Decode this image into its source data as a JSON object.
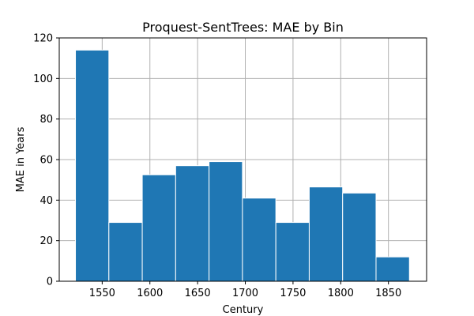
{
  "chart_data": {
    "type": "bar",
    "title": "Proquest-SentTrees: MAE by Bin",
    "xlabel": "Century",
    "ylabel": "MAE in Years",
    "xlim": [
      1505,
      1890
    ],
    "ylim": [
      0,
      120
    ],
    "xticks": [
      1550,
      1600,
      1650,
      1700,
      1750,
      1800,
      1850
    ],
    "yticks": [
      0,
      20,
      40,
      60,
      80,
      100,
      120
    ],
    "grid": true,
    "bar_color": "#1f77b4",
    "bins": [
      {
        "x0": 1522,
        "x1": 1557,
        "value": 114
      },
      {
        "x0": 1557,
        "x1": 1592,
        "value": 29
      },
      {
        "x0": 1592,
        "x1": 1627,
        "value": 52.5
      },
      {
        "x0": 1627,
        "x1": 1662,
        "value": 57
      },
      {
        "x0": 1662,
        "x1": 1697,
        "value": 59
      },
      {
        "x0": 1697,
        "x1": 1732,
        "value": 41
      },
      {
        "x0": 1732,
        "x1": 1767,
        "value": 29
      },
      {
        "x0": 1767,
        "x1": 1802,
        "value": 46.5
      },
      {
        "x0": 1802,
        "x1": 1837,
        "value": 43.5
      },
      {
        "x0": 1837,
        "x1": 1872,
        "value": 12
      }
    ]
  }
}
